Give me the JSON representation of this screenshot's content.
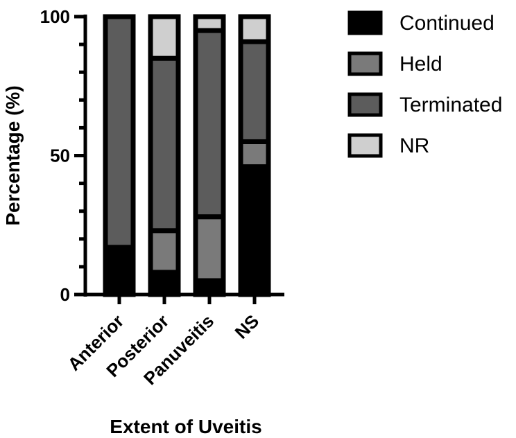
{
  "chart_data": {
    "type": "bar",
    "stacked": true,
    "categories": [
      "Anterior",
      "Posterior",
      "Panuveitis",
      "NS"
    ],
    "series": [
      {
        "name": "Continued",
        "color": "#000000",
        "values": [
          17,
          8,
          5,
          46
        ]
      },
      {
        "name": "Held",
        "color": "#7a7a7a",
        "values": [
          0,
          15,
          23,
          9
        ]
      },
      {
        "name": "Terminated",
        "color": "#5c5c5c",
        "values": [
          83,
          62,
          67,
          36
        ]
      },
      {
        "name": "NR",
        "color": "#cfcfcf",
        "values": [
          0,
          15,
          5,
          9
        ]
      }
    ],
    "xlabel": "Extent of Uveitis",
    "ylabel": "Percentage (%)",
    "ylim": [
      0,
      100
    ],
    "yticks": [
      0,
      50,
      100
    ],
    "legend_position": "right",
    "grid": false
  }
}
